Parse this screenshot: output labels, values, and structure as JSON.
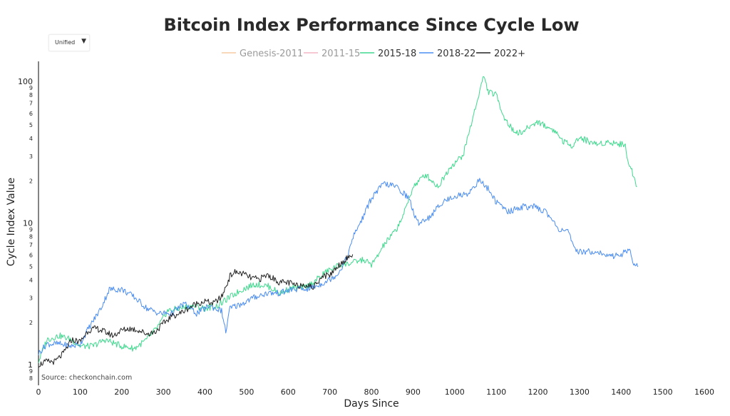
{
  "dropdown": {
    "selected": "Unified",
    "arrow_icon": "caret-down-icon"
  },
  "chart_data": {
    "type": "line",
    "title": "Bitcoin Index Performance Since Cycle Low",
    "xlabel": "Days Since",
    "ylabel": "Cycle Index Value",
    "source": "Source: checkonchain.com",
    "xlim": [
      0,
      1600
    ],
    "ylim": [
      0.8,
      130
    ],
    "yscale": "log",
    "x_ticks": [
      0,
      100,
      200,
      300,
      400,
      500,
      600,
      700,
      800,
      900,
      1000,
      1100,
      1200,
      1300,
      1400,
      1500,
      1600
    ],
    "y_major_ticks": [
      {
        "value": 1,
        "label": "1"
      },
      {
        "value": 2,
        "label": "2"
      },
      {
        "value": 3,
        "label": "3"
      },
      {
        "value": 4,
        "label": "4"
      },
      {
        "value": 5,
        "label": "5"
      },
      {
        "value": 6,
        "label": "6"
      },
      {
        "value": 10,
        "label": "10"
      },
      {
        "value": 20,
        "label": "2"
      },
      {
        "value": 30,
        "label": "3"
      },
      {
        "value": 40,
        "label": "4"
      },
      {
        "value": 50,
        "label": "5"
      },
      {
        "value": 60,
        "label": "6"
      },
      {
        "value": 100,
        "label": "100"
      }
    ],
    "y_minor_ticks": [
      {
        "value": 0.8,
        "label": "8"
      },
      {
        "value": 0.9,
        "label": "9"
      },
      {
        "value": 7,
        "label": "7"
      },
      {
        "value": 8,
        "label": "8"
      },
      {
        "value": 9,
        "label": "9"
      },
      {
        "value": 70,
        "label": "7"
      },
      {
        "value": 80,
        "label": "8"
      },
      {
        "value": 90,
        "label": "9"
      }
    ],
    "legend_position": "top-center",
    "series": [
      {
        "name": "Genesis-2011",
        "color": "#f5cba0",
        "visible": false,
        "x": [],
        "y": []
      },
      {
        "name": "2011-15",
        "color": "#f3b5c6",
        "visible": false,
        "x": [],
        "y": []
      },
      {
        "name": "2015-18",
        "color": "#3fd98e",
        "visible": true,
        "x": [
          0,
          20,
          50,
          80,
          100,
          130,
          160,
          200,
          230,
          260,
          290,
          310,
          340,
          370,
          400,
          430,
          460,
          490,
          520,
          550,
          580,
          610,
          640,
          660,
          690,
          720,
          750,
          780,
          800,
          810,
          830,
          860,
          880,
          900,
          930,
          960,
          990,
          1020,
          1040,
          1060,
          1070,
          1080,
          1100,
          1120,
          1140,
          1160,
          1180,
          1200,
          1220,
          1240,
          1260,
          1280,
          1300,
          1320,
          1340,
          1360,
          1380,
          1400,
          1410,
          1420,
          1430,
          1438
        ],
        "y": [
          1.05,
          1.5,
          1.6,
          1.5,
          1.35,
          1.35,
          1.5,
          1.35,
          1.3,
          1.5,
          1.9,
          2.4,
          2.5,
          2.6,
          2.5,
          2.6,
          3.0,
          3.4,
          3.7,
          3.6,
          3.2,
          3.5,
          3.5,
          3.8,
          4.5,
          5.0,
          5.2,
          5.5,
          5.1,
          5.5,
          7.0,
          9.0,
          12.0,
          18.0,
          22.0,
          18.0,
          25.0,
          30.0,
          50.0,
          85.0,
          110.0,
          85.0,
          80.0,
          55.0,
          45.0,
          43.0,
          48.0,
          52.0,
          48.0,
          45.0,
          38.0,
          35.0,
          40.0,
          38.0,
          36.0,
          37.0,
          37.0,
          36.0,
          35.0,
          25.0,
          22.0,
          18.0
        ]
      },
      {
        "name": "2018-22",
        "color": "#4b8df2",
        "visible": true,
        "x": [
          0,
          20,
          50,
          80,
          100,
          120,
          150,
          170,
          200,
          230,
          260,
          290,
          320,
          350,
          380,
          410,
          440,
          450,
          460,
          490,
          520,
          550,
          580,
          610,
          640,
          670,
          700,
          720,
          740,
          760,
          780,
          800,
          830,
          860,
          890,
          910,
          940,
          970,
          1000,
          1030,
          1060,
          1080,
          1100,
          1130,
          1160,
          1190,
          1220,
          1250,
          1270,
          1290,
          1310,
          1340,
          1370,
          1400,
          1420,
          1430,
          1440
        ],
        "y": [
          1.2,
          1.4,
          1.4,
          1.35,
          1.4,
          1.8,
          2.5,
          3.4,
          3.4,
          3.0,
          2.5,
          2.3,
          2.3,
          2.7,
          2.3,
          2.6,
          2.4,
          1.7,
          2.5,
          2.7,
          3.0,
          3.2,
          3.2,
          3.4,
          3.4,
          3.6,
          4.0,
          4.4,
          5.6,
          8.5,
          11.0,
          15.0,
          19.0,
          18.0,
          15.0,
          10.0,
          11.0,
          14.0,
          15.5,
          16.0,
          20.0,
          17.5,
          14.0,
          12.0,
          13.0,
          13.0,
          12.0,
          9.0,
          9.0,
          6.3,
          6.3,
          6.3,
          5.8,
          6.0,
          6.5,
          5.2,
          4.9
        ]
      },
      {
        "name": "2022+",
        "color": "#222222",
        "visible": true,
        "x": [
          0,
          20,
          40,
          60,
          80,
          100,
          120,
          140,
          160,
          180,
          200,
          220,
          240,
          260,
          280,
          300,
          320,
          340,
          360,
          380,
          400,
          420,
          440,
          460,
          470,
          490,
          510,
          530,
          550,
          580,
          600,
          620,
          640,
          660,
          680,
          700,
          720,
          740,
          755
        ],
        "y": [
          1.0,
          1.05,
          1.05,
          1.2,
          1.5,
          1.45,
          1.75,
          1.8,
          1.7,
          1.6,
          1.75,
          1.8,
          1.75,
          1.65,
          1.7,
          1.95,
          2.2,
          2.3,
          2.5,
          2.7,
          2.8,
          2.7,
          3.0,
          4.2,
          4.5,
          4.4,
          4.1,
          4.0,
          4.3,
          3.8,
          3.8,
          3.6,
          3.7,
          3.5,
          4.2,
          4.3,
          5.0,
          5.6,
          6.0
        ]
      }
    ]
  }
}
